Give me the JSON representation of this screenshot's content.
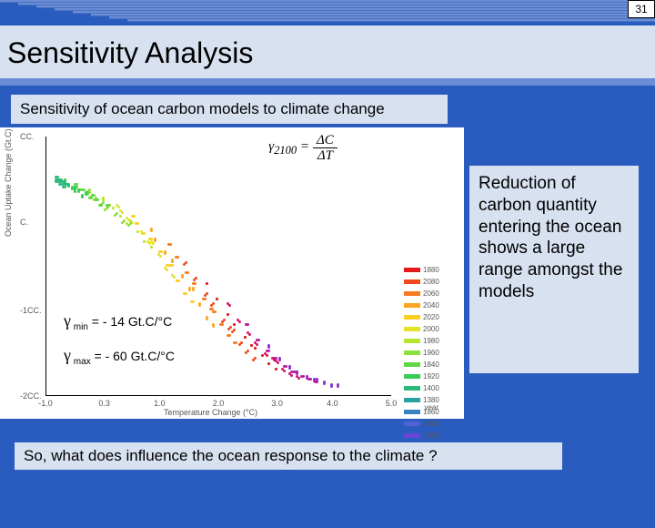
{
  "page_number": "31",
  "title": "Sensitivity Analysis",
  "subtitle": "Sensitivity of ocean carbon models to climate change",
  "formula": {
    "lhs_sym": "γ",
    "lhs_sub": "2100",
    "eq": " = ",
    "num": "ΔC",
    "den": "ΔT"
  },
  "side_text": "Reduction of carbon quantity entering the ocean shows a large range amongst the models",
  "footer": "So, what does influence the ocean response to the climate ?",
  "gamma_min": {
    "sym": "γ",
    "sub": " min",
    "rest": " = - 14 Gt.C/°C"
  },
  "gamma_max": {
    "sym": "γ",
    "sub": " max",
    "rest": " = - 60 Gt.C/°C"
  },
  "chart": {
    "x_label": "Temperature Change (°C)",
    "y_label": "Ocean Uptake Change (Gt.C)",
    "y_ticks": [
      {
        "v": "CC.",
        "pos": 0
      },
      {
        "v": "C.",
        "pos": 33
      },
      {
        "v": "-1CC.",
        "pos": 67
      },
      {
        "v": "-2CC.",
        "pos": 100
      }
    ],
    "x_ticks": [
      {
        "v": "-1.0",
        "pos": 0
      },
      {
        "v": "0.3",
        "pos": 17
      },
      {
        "v": "1.0",
        "pos": 33
      },
      {
        "v": "2.0",
        "pos": 50
      },
      {
        "v": "3.0",
        "pos": 67
      },
      {
        "v": "4.0",
        "pos": 83
      },
      {
        "v": "5.0",
        "pos": 100
      }
    ]
  },
  "legend": {
    "label": "year",
    "years": [
      "1880",
      "2080",
      "2060",
      "2040",
      "2020",
      "2000",
      "1980",
      "1960",
      "1840",
      "1920",
      "1400",
      "1380",
      "1860",
      "1840",
      "1820",
      "1800"
    ],
    "colors": [
      "#e51b1b",
      "#f04a1c",
      "#f77a1e",
      "#fba520",
      "#f9cf24",
      "#e3e32a",
      "#b8e531",
      "#8be039",
      "#5ed844",
      "#39cb57",
      "#2cb97a",
      "#2aa2a2",
      "#3884c3",
      "#4d63d6",
      "#6a46d8",
      "#8e2ecb"
    ]
  },
  "scatter": {
    "colors": [
      "#2cb97a",
      "#39cb57",
      "#5ed844",
      "#8be039",
      "#b8e531",
      "#e3e32a",
      "#f9cf24",
      "#fba520",
      "#f77a1e",
      "#f04a1c",
      "#e51b1b",
      "#d4156a",
      "#b81aa0",
      "#8e2ecb"
    ],
    "tracks": [
      [
        [
          3,
          15
        ],
        [
          5,
          16
        ],
        [
          8,
          18
        ],
        [
          12,
          20
        ],
        [
          16,
          23
        ],
        [
          20,
          26
        ],
        [
          25,
          30
        ],
        [
          30,
          35
        ],
        [
          35,
          41
        ],
        [
          40,
          48
        ],
        [
          46,
          56
        ],
        [
          52,
          64
        ],
        [
          58,
          72
        ],
        [
          64,
          80
        ]
      ],
      [
        [
          3,
          16
        ],
        [
          5,
          17
        ],
        [
          8,
          19
        ],
        [
          12,
          21
        ],
        [
          16,
          24
        ],
        [
          21,
          28
        ],
        [
          26,
          33
        ],
        [
          31,
          39
        ],
        [
          37,
          46
        ],
        [
          43,
          54
        ],
        [
          49,
          62
        ],
        [
          55,
          70
        ],
        [
          61,
          78
        ],
        [
          67,
          85
        ]
      ],
      [
        [
          3,
          17
        ],
        [
          6,
          18
        ],
        [
          9,
          20
        ],
        [
          13,
          22
        ],
        [
          18,
          26
        ],
        [
          23,
          31
        ],
        [
          28,
          37
        ],
        [
          34,
          44
        ],
        [
          40,
          52
        ],
        [
          46,
          60
        ],
        [
          52,
          68
        ],
        [
          58,
          75
        ],
        [
          64,
          82
        ],
        [
          70,
          88
        ]
      ],
      [
        [
          4,
          16
        ],
        [
          6,
          18
        ],
        [
          10,
          20
        ],
        [
          14,
          23
        ],
        [
          19,
          27
        ],
        [
          24,
          32
        ],
        [
          30,
          39
        ],
        [
          36,
          47
        ],
        [
          42,
          56
        ],
        [
          48,
          64
        ],
        [
          54,
          72
        ],
        [
          60,
          79
        ],
        [
          66,
          85
        ],
        [
          72,
          90
        ]
      ],
      [
        [
          4,
          17
        ],
        [
          7,
          19
        ],
        [
          11,
          21
        ],
        [
          16,
          25
        ],
        [
          21,
          30
        ],
        [
          27,
          36
        ],
        [
          33,
          44
        ],
        [
          39,
          53
        ],
        [
          45,
          62
        ],
        [
          51,
          70
        ],
        [
          57,
          77
        ],
        [
          63,
          83
        ],
        [
          69,
          88
        ],
        [
          75,
          92
        ]
      ],
      [
        [
          4,
          18
        ],
        [
          8,
          20
        ],
        [
          12,
          23
        ],
        [
          17,
          27
        ],
        [
          23,
          33
        ],
        [
          29,
          40
        ],
        [
          35,
          49
        ],
        [
          41,
          58
        ],
        [
          47,
          66
        ],
        [
          53,
          73
        ],
        [
          59,
          80
        ],
        [
          65,
          85
        ],
        [
          71,
          90
        ],
        [
          77,
          93
        ]
      ],
      [
        [
          5,
          17
        ],
        [
          8,
          19
        ],
        [
          13,
          22
        ],
        [
          18,
          26
        ],
        [
          24,
          32
        ],
        [
          30,
          40
        ],
        [
          36,
          49
        ],
        [
          42,
          58
        ],
        [
          48,
          67
        ],
        [
          54,
          74
        ],
        [
          60,
          81
        ],
        [
          66,
          86
        ],
        [
          72,
          90
        ],
        [
          78,
          93
        ]
      ],
      [
        [
          5,
          18
        ],
        [
          9,
          20
        ],
        [
          14,
          24
        ],
        [
          20,
          29
        ],
        [
          26,
          36
        ],
        [
          32,
          45
        ],
        [
          38,
          55
        ],
        [
          44,
          64
        ],
        [
          50,
          72
        ],
        [
          56,
          79
        ],
        [
          62,
          84
        ],
        [
          68,
          89
        ],
        [
          74,
          92
        ],
        [
          80,
          94
        ]
      ],
      [
        [
          5,
          19
        ],
        [
          10,
          22
        ],
        [
          15,
          26
        ],
        [
          22,
          32
        ],
        [
          28,
          40
        ],
        [
          34,
          50
        ],
        [
          40,
          60
        ],
        [
          46,
          69
        ],
        [
          52,
          76
        ],
        [
          58,
          82
        ],
        [
          64,
          87
        ],
        [
          70,
          91
        ],
        [
          76,
          93
        ],
        [
          82,
          95
        ]
      ],
      [
        [
          6,
          18
        ],
        [
          11,
          21
        ],
        [
          17,
          26
        ],
        [
          24,
          33
        ],
        [
          30,
          42
        ],
        [
          36,
          53
        ],
        [
          42,
          63
        ],
        [
          48,
          72
        ],
        [
          54,
          79
        ],
        [
          60,
          85
        ],
        [
          66,
          89
        ],
        [
          72,
          92
        ],
        [
          78,
          94
        ],
        [
          84,
          95
        ]
      ]
    ]
  },
  "header_bars": [
    720,
    700,
    680,
    660,
    640,
    620,
    600,
    580
  ]
}
